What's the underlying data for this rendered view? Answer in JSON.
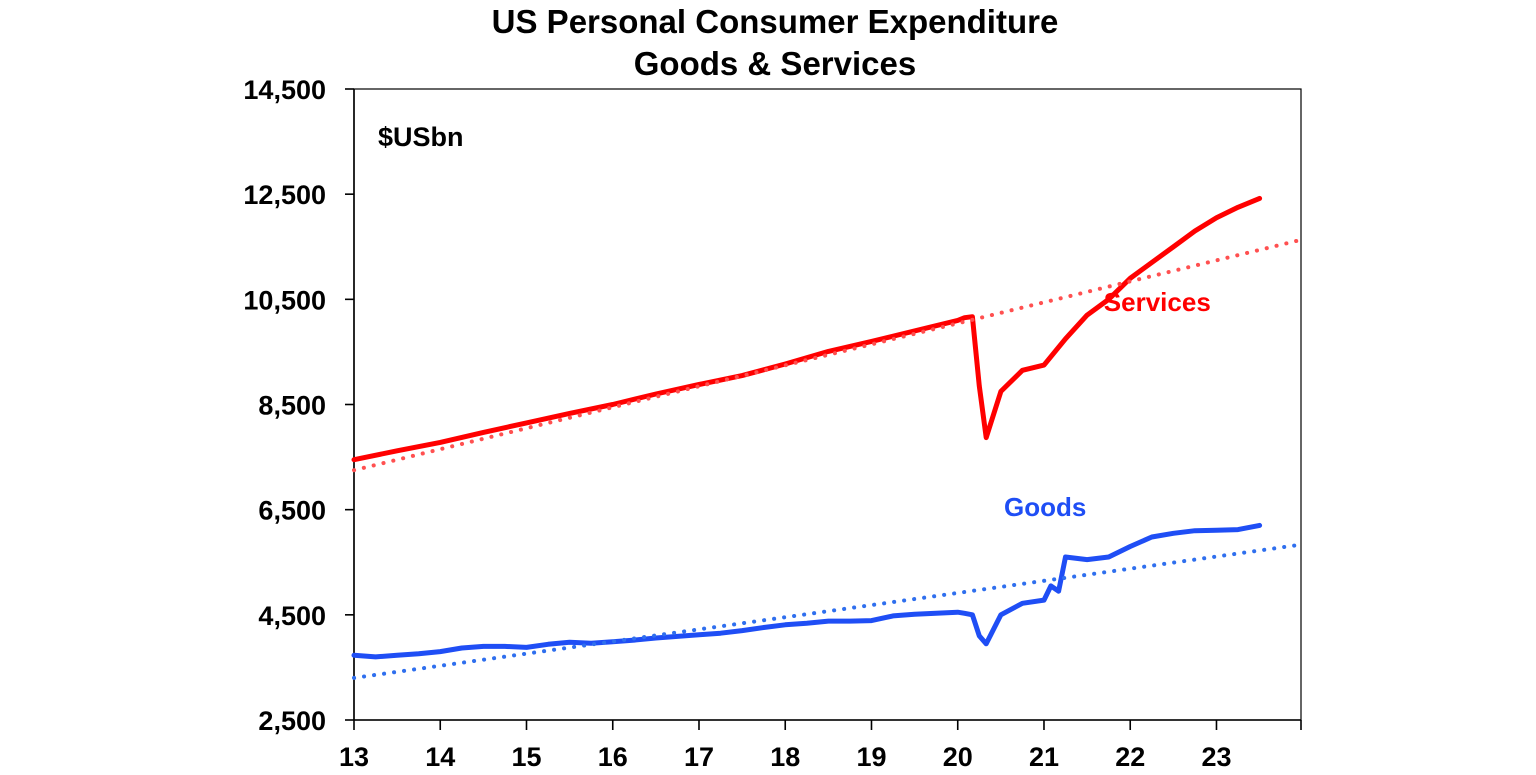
{
  "chart_data": {
    "type": "line",
    "title": "US Personal Consumer Expenditure",
    "subtitle": "Goods & Services",
    "unit_label": "$USbn",
    "xlabel": "",
    "ylabel": "",
    "xlim": [
      2013,
      2023.98
    ],
    "ylim": [
      2500,
      14500
    ],
    "y_ticks": [
      2500,
      4500,
      6500,
      8500,
      10500,
      12500,
      14500
    ],
    "y_tick_labels": [
      "2,500",
      "4,500",
      "6,500",
      "8,500",
      "10,500",
      "12,500",
      "14,500"
    ],
    "x_ticks": [
      2013,
      2014,
      2015,
      2016,
      2017,
      2018,
      2019,
      2020,
      2021,
      2022,
      2023
    ],
    "x_tick_labels": [
      "13",
      "14",
      "15",
      "16",
      "17",
      "18",
      "19",
      "20",
      "21",
      "22",
      "23"
    ],
    "grid": false,
    "colors": {
      "services": "#ff0000",
      "services_trend": "#ff5050",
      "goods": "#1f4ef5",
      "goods_trend": "#2f6fee",
      "axis": "#000000"
    },
    "series": [
      {
        "name": "Services",
        "label": "Services",
        "color": "#ff0000",
        "x": [
          2013.0,
          2013.5,
          2014.0,
          2014.5,
          2015.0,
          2015.5,
          2016.0,
          2016.5,
          2017.0,
          2017.5,
          2018.0,
          2018.5,
          2019.0,
          2019.5,
          2020.0,
          2020.08,
          2020.17,
          2020.25,
          2020.33,
          2020.5,
          2020.75,
          2021.0,
          2021.25,
          2021.5,
          2021.75,
          2022.0,
          2022.25,
          2022.5,
          2022.75,
          2023.0,
          2023.25,
          2023.5
        ],
        "values": [
          7450,
          7620,
          7780,
          7970,
          8150,
          8330,
          8500,
          8700,
          8880,
          9050,
          9270,
          9510,
          9700,
          9900,
          10100,
          10150,
          10170,
          8850,
          7870,
          8750,
          9150,
          9250,
          9750,
          10200,
          10500,
          10900,
          11200,
          11500,
          11800,
          12050,
          12250,
          12420
        ]
      },
      {
        "name": "Services trend",
        "label": "",
        "color": "#ff5050",
        "style": "dotted",
        "x": [
          2013.0,
          2024.0
        ],
        "values": [
          7250,
          11640
        ]
      },
      {
        "name": "Goods",
        "label": "Goods",
        "color": "#1f4ef5",
        "x": [
          2013.0,
          2013.25,
          2013.5,
          2013.75,
          2014.0,
          2014.25,
          2014.5,
          2014.75,
          2015.0,
          2015.25,
          2015.5,
          2015.75,
          2016.0,
          2016.25,
          2016.5,
          2016.75,
          2017.0,
          2017.25,
          2017.5,
          2017.75,
          2018.0,
          2018.25,
          2018.5,
          2018.75,
          2019.0,
          2019.25,
          2019.5,
          2019.75,
          2020.0,
          2020.08,
          2020.17,
          2020.25,
          2020.33,
          2020.5,
          2020.75,
          2021.0,
          2021.08,
          2021.17,
          2021.25,
          2021.5,
          2021.75,
          2022.0,
          2022.25,
          2022.5,
          2022.75,
          2023.0,
          2023.25,
          2023.5
        ],
        "values": [
          3730,
          3700,
          3730,
          3760,
          3800,
          3870,
          3900,
          3900,
          3880,
          3940,
          3980,
          3960,
          3990,
          4020,
          4060,
          4090,
          4120,
          4150,
          4200,
          4260,
          4310,
          4340,
          4380,
          4380,
          4390,
          4480,
          4510,
          4530,
          4550,
          4530,
          4500,
          4100,
          3950,
          4500,
          4720,
          4780,
          5050,
          4950,
          5600,
          5550,
          5600,
          5800,
          5980,
          6050,
          6100,
          6110,
          6120,
          6200
        ]
      },
      {
        "name": "Goods trend",
        "label": "",
        "color": "#2f6fee",
        "style": "dotted",
        "x": [
          2013.0,
          2024.0
        ],
        "values": [
          3300,
          5840
        ]
      }
    ]
  }
}
